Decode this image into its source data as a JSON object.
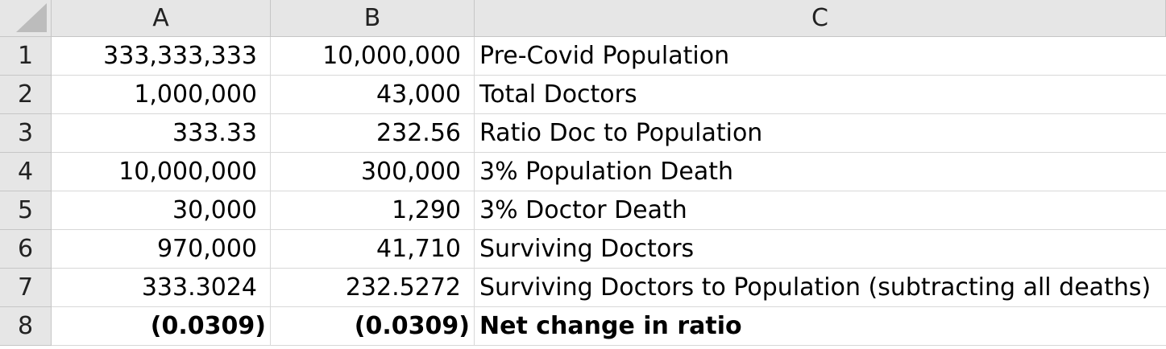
{
  "columns": [
    "A",
    "B",
    "C"
  ],
  "rows": [
    {
      "num": "1",
      "a": "333,333,333",
      "b": "10,000,000",
      "c": "Pre-Covid Population",
      "bold": false
    },
    {
      "num": "2",
      "a": "1,000,000",
      "b": "43,000",
      "c": "Total Doctors",
      "bold": false
    },
    {
      "num": "3",
      "a": "333.33",
      "b": "232.56",
      "c": "Ratio Doc to Population",
      "bold": false
    },
    {
      "num": "4",
      "a": "10,000,000",
      "b": "300,000",
      "c": "3% Population Death",
      "bold": false
    },
    {
      "num": "5",
      "a": "30,000",
      "b": "1,290",
      "c": "3% Doctor Death",
      "bold": false
    },
    {
      "num": "6",
      "a": "970,000",
      "b": "41,710",
      "c": "Surviving Doctors",
      "bold": false
    },
    {
      "num": "7",
      "a": "333.3024",
      "b": "232.5272",
      "c": "Surviving Doctors to Population (subtracting all deaths)",
      "bold": false
    },
    {
      "num": "8",
      "a": "(0.0309)",
      "b": "(0.0309)",
      "c": "Net change in ratio",
      "bold": true
    }
  ],
  "colors": {
    "header_bg": "#e6e6e6",
    "gridline": "#d8d8d8"
  }
}
